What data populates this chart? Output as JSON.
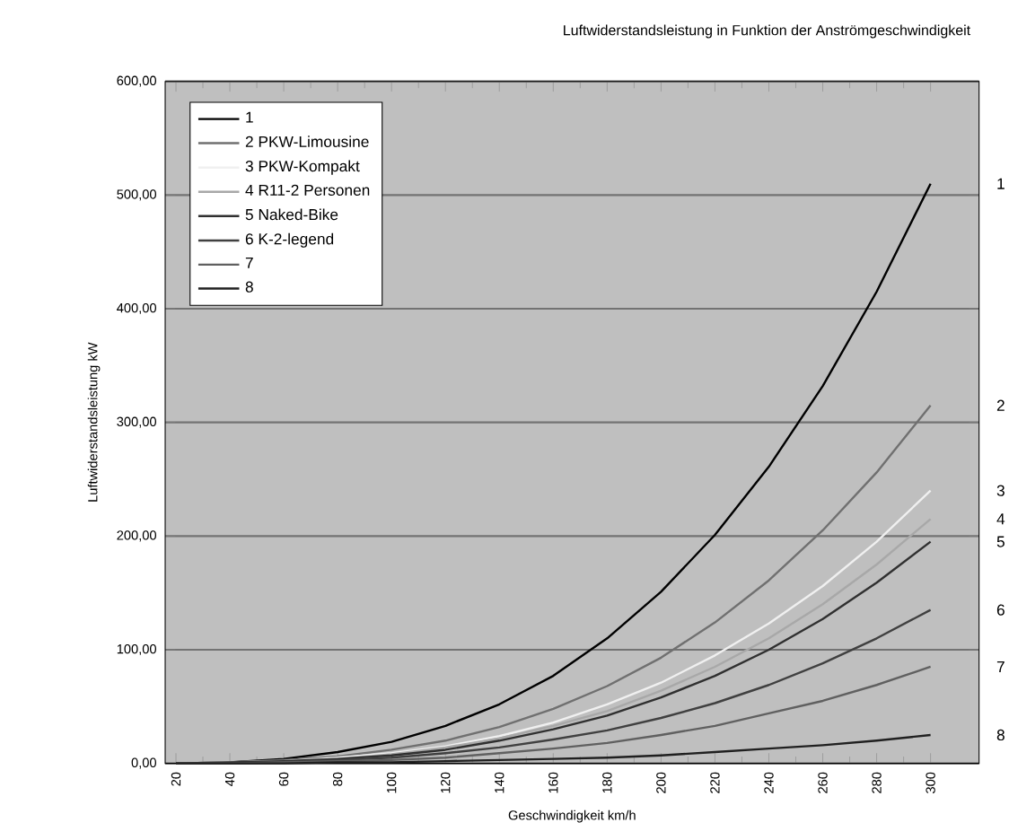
{
  "chart_data": {
    "type": "line",
    "title": "Luftwiderstandsleistung in Funktion der Anströmgeschwindigkeit",
    "xlabel": "Geschwindigkeit km/h",
    "ylabel": "Luftwiderstandsleistung kW",
    "x": [
      20,
      40,
      60,
      80,
      100,
      120,
      140,
      160,
      180,
      200,
      220,
      240,
      260,
      280,
      300
    ],
    "xlim": [
      16,
      318
    ],
    "xticks": [
      20,
      40,
      60,
      80,
      100,
      120,
      140,
      160,
      180,
      200,
      220,
      240,
      260,
      280,
      300
    ],
    "ylim": [
      0,
      600
    ],
    "yticks": [
      {
        "value": 0,
        "label": "0,00"
      },
      {
        "value": 100,
        "label": "100,00"
      },
      {
        "value": 200,
        "label": "200,00"
      },
      {
        "value": 300,
        "label": "300,00"
      },
      {
        "value": 400,
        "label": "400,00"
      },
      {
        "value": 500,
        "label": "500,00"
      },
      {
        "value": 600,
        "label": "600,00"
      }
    ],
    "grid": "y",
    "legend": "top left",
    "series": [
      {
        "name": "1",
        "color": "#000000",
        "values": [
          0,
          1,
          4,
          10,
          19,
          33,
          52,
          77,
          110,
          151,
          201,
          261,
          332,
          415,
          510
        ]
      },
      {
        "name": "2 PKW-Limousine",
        "color": "#707070",
        "values": [
          0,
          1,
          3,
          6,
          12,
          20,
          32,
          48,
          68,
          93,
          124,
          161,
          205,
          256,
          315
        ]
      },
      {
        "name": "3 PKW-Kompakt",
        "color": "#f0f0f0",
        "values": [
          0,
          1,
          2,
          5,
          9,
          15,
          24,
          36,
          52,
          71,
          95,
          123,
          156,
          195,
          240
        ]
      },
      {
        "name": "4 R11-2 Personen",
        "color": "#a8a8a8",
        "values": [
          0,
          1,
          2,
          4,
          8,
          14,
          22,
          33,
          46,
          64,
          85,
          110,
          140,
          175,
          215
        ]
      },
      {
        "name": "5 Naked-Bike",
        "color": "#303030",
        "values": [
          0,
          1,
          2,
          4,
          7,
          12,
          20,
          30,
          42,
          58,
          77,
          100,
          127,
          159,
          195
        ]
      },
      {
        "name": "6 K-2-legend",
        "color": "#404040",
        "values": [
          0,
          0,
          1,
          3,
          5,
          9,
          14,
          21,
          29,
          40,
          53,
          69,
          88,
          110,
          135
        ]
      },
      {
        "name": "7",
        "color": "#606060",
        "values": [
          0,
          0,
          1,
          2,
          3,
          5,
          9,
          13,
          18,
          25,
          33,
          44,
          55,
          69,
          85
        ]
      },
      {
        "name": "8",
        "color": "#202020",
        "values": [
          0,
          0,
          0,
          1,
          1,
          2,
          3,
          4,
          5,
          7,
          10,
          13,
          16,
          20,
          25
        ]
      }
    ],
    "annotations": [
      "1",
      "2",
      "3",
      "4",
      "5",
      "6",
      "7",
      "8"
    ]
  }
}
